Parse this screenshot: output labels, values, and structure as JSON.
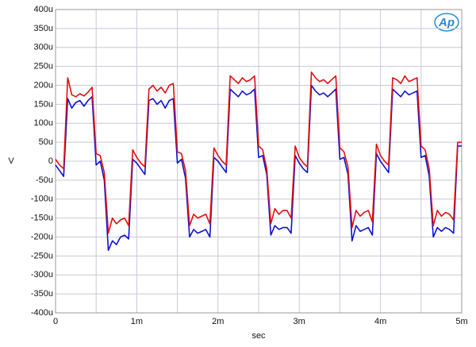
{
  "chart_data": {
    "type": "line",
    "logo": "Ap",
    "x_label": "sec",
    "y_label": "V",
    "x": [
      0,
      5e-05,
      0.0001,
      0.00015,
      0.0002,
      0.00025,
      0.0003,
      0.00035,
      0.0004,
      0.00045,
      0.0005,
      0.00055,
      0.0006,
      0.00065,
      0.0007,
      0.00075,
      0.0008,
      0.00085,
      0.0009,
      0.00095,
      0.001,
      0.00105,
      0.0011,
      0.00115,
      0.0012,
      0.00125,
      0.0013,
      0.00135,
      0.0014,
      0.00145,
      0.0015,
      0.00155,
      0.0016,
      0.00165,
      0.0017,
      0.00175,
      0.0018,
      0.00185,
      0.0019,
      0.00195,
      0.002,
      0.00205,
      0.0021,
      0.00215,
      0.0022,
      0.00225,
      0.0023,
      0.00235,
      0.0024,
      0.00245,
      0.0025,
      0.00255,
      0.0026,
      0.00265,
      0.0027,
      0.00275,
      0.0028,
      0.00285,
      0.0029,
      0.00295,
      0.003,
      0.00305,
      0.0031,
      0.00315,
      0.0032,
      0.00325,
      0.0033,
      0.00335,
      0.0034,
      0.00345,
      0.0035,
      0.00355,
      0.0036,
      0.00365,
      0.0037,
      0.00375,
      0.0038,
      0.00385,
      0.0039,
      0.00395,
      0.004,
      0.00405,
      0.0041,
      0.00415,
      0.0042,
      0.00425,
      0.0043,
      0.00435,
      0.0044,
      0.00445,
      0.0045,
      0.00455,
      0.0046,
      0.00465,
      0.0047,
      0.00475,
      0.0048,
      0.00485,
      0.0049,
      0.00495,
      0.005
    ],
    "series": [
      {
        "color": "#e01010",
        "values": [
          5e-06,
          -1e-05,
          -2e-05,
          0.00022,
          0.000175,
          0.00017,
          0.000178,
          0.000172,
          0.000182,
          0.000195,
          2e-05,
          1.5e-05,
          -3e-05,
          -0.00019,
          -0.00015,
          -0.000165,
          -0.000155,
          -0.00015,
          -0.00017,
          3e-05,
          1e-05,
          -5e-06,
          -1.5e-05,
          0.00019,
          0.0002,
          0.000185,
          0.000195,
          0.00018,
          0.0002,
          0.000205,
          2.5e-05,
          2e-05,
          -2.5e-05,
          -0.00017,
          -0.00014,
          -0.00015,
          -0.000145,
          -0.00014,
          -0.000165,
          3.5e-05,
          1.5e-05,
          0,
          -1e-05,
          0.000225,
          0.000215,
          0.000205,
          0.00022,
          0.00021,
          0.000215,
          0.000225,
          4e-05,
          3e-05,
          -2e-05,
          -0.000165,
          -0.000125,
          -0.00014,
          -0.00013,
          -0.00013,
          -0.00015,
          4e-05,
          1e-05,
          -5e-06,
          -1.5e-05,
          0.000235,
          0.00022,
          0.00021,
          0.000215,
          0.000205,
          0.000215,
          0.000225,
          3.5e-05,
          2.5e-05,
          -1.5e-05,
          -0.000175,
          -0.00013,
          -0.000145,
          -0.000135,
          -0.00013,
          -0.00016,
          4.5e-05,
          1.5e-05,
          0,
          -1e-05,
          0.00022,
          0.000215,
          0.000205,
          0.000225,
          0.00021,
          0.000215,
          0.00022,
          4e-05,
          3e-05,
          -2e-05,
          -0.00017,
          -0.00013,
          -0.000145,
          -0.000135,
          -0.00014,
          -0.000155,
          5e-05,
          5e-05
        ]
      },
      {
        "color": "#1010d0",
        "values": [
          -1e-05,
          -2.5e-05,
          -4e-05,
          0.000165,
          0.00014,
          0.000155,
          0.00016,
          0.000145,
          0.00016,
          0.00017,
          -1e-05,
          0,
          -5e-05,
          -0.000235,
          -0.00021,
          -0.00022,
          -0.0002,
          -0.000195,
          -0.000205,
          5e-06,
          -5e-06,
          -2e-05,
          -3.5e-05,
          0.00016,
          0.000165,
          0.00015,
          0.00016,
          0.00014,
          0.00016,
          0.000165,
          -5e-06,
          5e-06,
          -4.5e-05,
          -0.0002,
          -0.00018,
          -0.00019,
          -0.000185,
          -0.00018,
          -0.0002,
          1e-05,
          0,
          -1.5e-05,
          -3e-05,
          0.00019,
          0.00018,
          0.00017,
          0.000185,
          0.000175,
          0.00018,
          0.00019,
          1e-05,
          1.5e-05,
          -3.5e-05,
          -0.000195,
          -0.00017,
          -0.00018,
          -0.000175,
          -0.000175,
          -0.00019,
          1.5e-05,
          -5e-06,
          -2e-05,
          -3e-05,
          0.0002,
          0.000185,
          0.000175,
          0.00018,
          0.00017,
          0.00018,
          0.00019,
          5e-06,
          1e-05,
          -3.5e-05,
          -0.00021,
          -0.00017,
          -0.000185,
          -0.00018,
          -0.000175,
          -0.000195,
          2e-05,
          0,
          -1.5e-05,
          -3e-05,
          0.00019,
          0.00018,
          0.00017,
          0.000185,
          0.000175,
          0.00018,
          0.000185,
          1e-05,
          1.5e-05,
          -4e-05,
          -0.0002,
          -0.000175,
          -0.000185,
          -0.000175,
          -0.00018,
          -0.00019,
          4e-05,
          4e-05
        ]
      }
    ],
    "xlim": [
      0,
      0.005
    ],
    "xticks": [
      0,
      {
        "value": 0.001,
        "label": "1m"
      },
      {
        "value": 0.002,
        "label": "2m"
      },
      {
        "value": 0.003,
        "label": "3m"
      },
      {
        "value": 0.004,
        "label": "4m"
      },
      {
        "value": 0.005,
        "label": "5m"
      }
    ],
    "x_minor_grid": [
      0.0005,
      0.0015,
      0.0025,
      0.0035,
      0.0045
    ],
    "ylim": [
      -0.0004,
      0.0004
    ],
    "yticks": [
      {
        "value": 0.0004,
        "label": "400u"
      },
      {
        "value": 0.00035,
        "label": "350u"
      },
      {
        "value": 0.0003,
        "label": "300u"
      },
      {
        "value": 0.00025,
        "label": "250u"
      },
      {
        "value": 0.0002,
        "label": "200u"
      },
      {
        "value": 0.00015,
        "label": "150u"
      },
      {
        "value": 0.0001,
        "label": "100u"
      },
      {
        "value": 5e-05,
        "label": "50u"
      },
      0,
      {
        "value": -5e-05,
        "label": "-50u"
      },
      {
        "value": -0.0001,
        "label": "-100u"
      },
      {
        "value": -0.00015,
        "label": "-150u"
      },
      {
        "value": -0.0002,
        "label": "-200u"
      },
      {
        "value": -0.00025,
        "label": "-250u"
      },
      {
        "value": -0.0003,
        "label": "-300u"
      },
      {
        "value": -0.00035,
        "label": "-350u"
      },
      {
        "value": -0.0004,
        "label": "-400u"
      }
    ],
    "grid": true
  }
}
